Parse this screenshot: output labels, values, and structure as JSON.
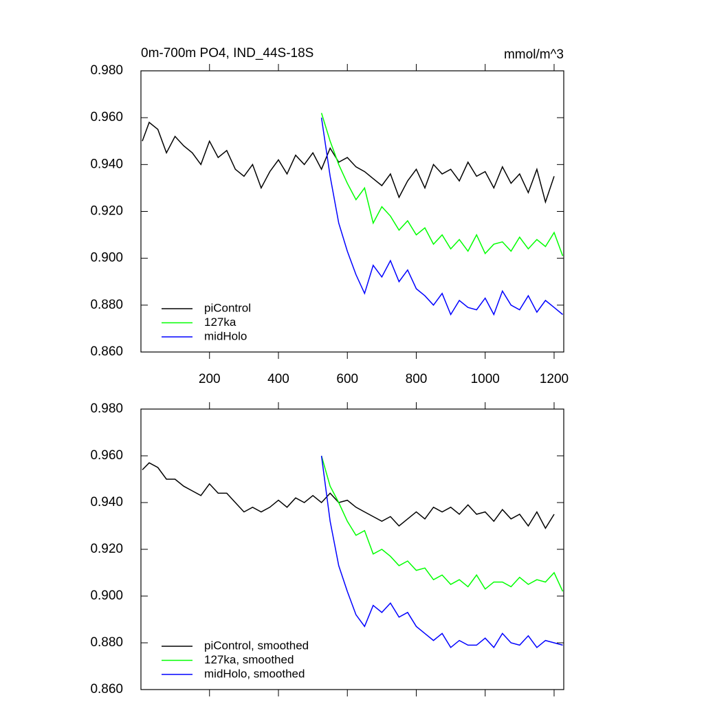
{
  "chart_data": [
    {
      "type": "line",
      "title": "0m-700m PO4, IND_44S-18S",
      "units": "mmol/m^3",
      "xlim": [
        1,
        1228
      ],
      "xticks": [
        200,
        400,
        600,
        800,
        1000,
        1200
      ],
      "xtick_labels": true,
      "ylim": [
        0.86,
        0.98
      ],
      "yticks": [
        {
          "value": 0.86,
          "label": "0.860"
        },
        {
          "value": 0.88,
          "label": "0.880"
        },
        {
          "value": 0.9,
          "label": "0.900"
        },
        {
          "value": 0.92,
          "label": "0.920"
        },
        {
          "value": 0.94,
          "label": "0.940"
        },
        {
          "value": 0.96,
          "label": "0.960"
        },
        {
          "value": 0.98,
          "label": "0.980"
        }
      ],
      "legend": "lower left",
      "series": [
        {
          "name": "piControl",
          "color": "#000000",
          "x": [
            5,
            25,
            50,
            75,
            100,
            125,
            150,
            175,
            200,
            225,
            250,
            275,
            300,
            325,
            350,
            375,
            400,
            425,
            450,
            475,
            500,
            525,
            550,
            575,
            600,
            625,
            650,
            675,
            700,
            725,
            750,
            775,
            800,
            825,
            850,
            875,
            900,
            925,
            950,
            975,
            1000,
            1025,
            1050,
            1075,
            1100,
            1125,
            1150,
            1175,
            1200
          ],
          "values": [
            0.95,
            0.958,
            0.955,
            0.945,
            0.952,
            0.948,
            0.945,
            0.94,
            0.95,
            0.943,
            0.946,
            0.938,
            0.935,
            0.94,
            0.93,
            0.937,
            0.942,
            0.936,
            0.944,
            0.94,
            0.945,
            0.938,
            0.947,
            0.941,
            0.943,
            0.939,
            0.937,
            0.934,
            0.931,
            0.936,
            0.926,
            0.933,
            0.938,
            0.93,
            0.94,
            0.936,
            0.938,
            0.933,
            0.941,
            0.935,
            0.937,
            0.93,
            0.939,
            0.932,
            0.936,
            0.928,
            0.938,
            0.924,
            0.935
          ]
        },
        {
          "name": "127ka",
          "color": "#00ff00",
          "x": [
            525,
            550,
            575,
            600,
            625,
            650,
            675,
            700,
            725,
            750,
            775,
            800,
            825,
            850,
            875,
            900,
            925,
            950,
            975,
            1000,
            1025,
            1050,
            1075,
            1100,
            1125,
            1150,
            1175,
            1200,
            1225
          ],
          "values": [
            0.962,
            0.95,
            0.94,
            0.932,
            0.925,
            0.93,
            0.915,
            0.922,
            0.918,
            0.912,
            0.916,
            0.91,
            0.913,
            0.906,
            0.91,
            0.904,
            0.908,
            0.903,
            0.91,
            0.902,
            0.906,
            0.907,
            0.903,
            0.909,
            0.904,
            0.908,
            0.905,
            0.911,
            0.901
          ]
        },
        {
          "name": "midHolo",
          "color": "#0000ff",
          "x": [
            525,
            550,
            575,
            600,
            625,
            650,
            675,
            700,
            725,
            750,
            775,
            800,
            825,
            850,
            875,
            900,
            925,
            950,
            975,
            1000,
            1025,
            1050,
            1075,
            1100,
            1125,
            1150,
            1175,
            1200,
            1225
          ],
          "values": [
            0.96,
            0.935,
            0.915,
            0.903,
            0.893,
            0.885,
            0.897,
            0.892,
            0.899,
            0.89,
            0.895,
            0.887,
            0.884,
            0.88,
            0.885,
            0.876,
            0.882,
            0.879,
            0.878,
            0.883,
            0.876,
            0.886,
            0.88,
            0.878,
            0.884,
            0.877,
            0.882,
            0.879,
            0.876
          ]
        }
      ]
    },
    {
      "type": "line",
      "xlim": [
        1,
        1228
      ],
      "xticks": [
        200,
        400,
        600,
        800,
        1000,
        1200
      ],
      "xtick_labels": false,
      "ylim": [
        0.86,
        0.98
      ],
      "yticks": [
        {
          "value": 0.86,
          "label": "0.860"
        },
        {
          "value": 0.88,
          "label": "0.880"
        },
        {
          "value": 0.9,
          "label": "0.900"
        },
        {
          "value": 0.92,
          "label": "0.920"
        },
        {
          "value": 0.94,
          "label": "0.940"
        },
        {
          "value": 0.96,
          "label": "0.960"
        },
        {
          "value": 0.98,
          "label": "0.980"
        }
      ],
      "legend": "lower left",
      "series": [
        {
          "name": "piControl, smoothed",
          "color": "#000000",
          "x": [
            5,
            25,
            50,
            75,
            100,
            125,
            150,
            175,
            200,
            225,
            250,
            275,
            300,
            325,
            350,
            375,
            400,
            425,
            450,
            475,
            500,
            525,
            550,
            575,
            600,
            625,
            650,
            675,
            700,
            725,
            750,
            775,
            800,
            825,
            850,
            875,
            900,
            925,
            950,
            975,
            1000,
            1025,
            1050,
            1075,
            1100,
            1125,
            1150,
            1175,
            1200
          ],
          "values": [
            0.954,
            0.957,
            0.955,
            0.95,
            0.95,
            0.947,
            0.945,
            0.943,
            0.948,
            0.944,
            0.944,
            0.94,
            0.936,
            0.938,
            0.936,
            0.938,
            0.941,
            0.938,
            0.942,
            0.94,
            0.943,
            0.94,
            0.944,
            0.94,
            0.941,
            0.938,
            0.936,
            0.934,
            0.932,
            0.934,
            0.93,
            0.933,
            0.936,
            0.933,
            0.938,
            0.936,
            0.938,
            0.935,
            0.939,
            0.935,
            0.936,
            0.932,
            0.937,
            0.933,
            0.935,
            0.93,
            0.936,
            0.929,
            0.935
          ]
        },
        {
          "name": "127ka, smoothed",
          "color": "#00ff00",
          "x": [
            525,
            550,
            575,
            600,
            625,
            650,
            675,
            700,
            725,
            750,
            775,
            800,
            825,
            850,
            875,
            900,
            925,
            950,
            975,
            1000,
            1025,
            1050,
            1075,
            1100,
            1125,
            1150,
            1175,
            1200,
            1225
          ],
          "values": [
            0.96,
            0.947,
            0.94,
            0.932,
            0.926,
            0.928,
            0.918,
            0.92,
            0.917,
            0.913,
            0.915,
            0.911,
            0.912,
            0.907,
            0.909,
            0.905,
            0.907,
            0.904,
            0.909,
            0.903,
            0.906,
            0.906,
            0.904,
            0.908,
            0.905,
            0.907,
            0.906,
            0.91,
            0.902
          ]
        },
        {
          "name": "midHolo, smoothed",
          "color": "#0000ff",
          "x": [
            525,
            550,
            575,
            600,
            625,
            650,
            675,
            700,
            725,
            750,
            775,
            800,
            825,
            850,
            875,
            900,
            925,
            950,
            975,
            1000,
            1025,
            1050,
            1075,
            1100,
            1125,
            1150,
            1175,
            1200,
            1225
          ],
          "values": [
            0.96,
            0.932,
            0.913,
            0.902,
            0.892,
            0.887,
            0.896,
            0.893,
            0.897,
            0.891,
            0.893,
            0.887,
            0.884,
            0.881,
            0.884,
            0.878,
            0.881,
            0.879,
            0.879,
            0.882,
            0.878,
            0.884,
            0.88,
            0.879,
            0.883,
            0.878,
            0.881,
            0.88,
            0.879
          ]
        }
      ]
    }
  ]
}
